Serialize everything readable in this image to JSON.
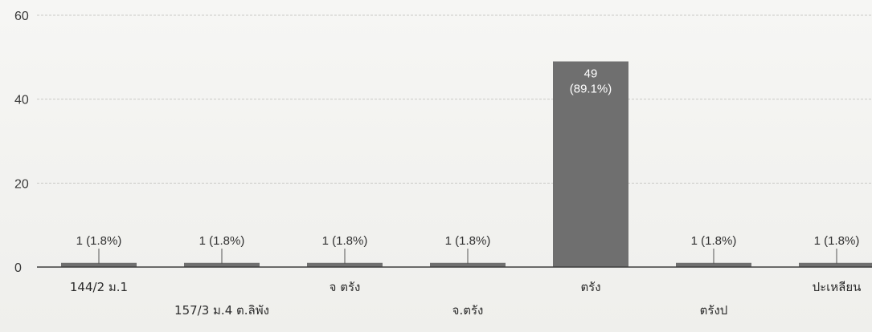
{
  "chart_data": {
    "type": "bar",
    "title": "",
    "xlabel": "",
    "ylabel": "",
    "ylim": [
      0,
      60
    ],
    "yticks": [
      0,
      20,
      40,
      60
    ],
    "grid": true,
    "bar_color": "#6f6f6f",
    "categories": [
      "144/2 ม.1",
      "157/3 ม.4 ต.ลิพัง",
      "จ ตรัง",
      "จ.ตรัง",
      "ตรัง",
      "ตรังป",
      "ปะเหลียน"
    ],
    "values": [
      1,
      1,
      1,
      1,
      49,
      1,
      1
    ],
    "data_labels": [
      "1 (1.8%)",
      "1 (1.8%)",
      "1 (1.8%)",
      "1 (1.8%)",
      "49 (89.1%)",
      "1 (1.8%)",
      "1 (1.8%)"
    ]
  }
}
